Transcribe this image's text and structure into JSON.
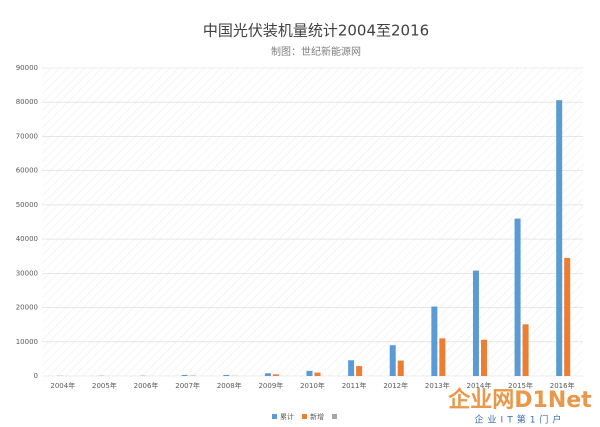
{
  "chart_data": {
    "type": "bar",
    "title": "中国光伏装机量统计2004至2016",
    "subtitle": "制图：世纪新能源网",
    "categories": [
      "2004年",
      "2005年",
      "2006年",
      "2007年",
      "2008年",
      "2009年",
      "2010年",
      "2011年",
      "2012年",
      "2013年",
      "2014年",
      "2015年",
      "2016年"
    ],
    "series": [
      {
        "name": "累计",
        "color": "#5b9bd5",
        "values": [
          65,
          70,
          80,
          300,
          300,
          800,
          1500,
          4600,
          9000,
          20300,
          30800,
          46000,
          80600
        ]
      },
      {
        "name": "新增",
        "color": "#ed7d31",
        "values": [
          10,
          5,
          10,
          100,
          50,
          500,
          1000,
          2900,
          4500,
          11000,
          10600,
          15100,
          34500
        ]
      }
    ],
    "ylim": [
      0,
      90000
    ],
    "yticks": [
      0,
      10000,
      20000,
      30000,
      40000,
      50000,
      60000,
      70000,
      80000,
      90000
    ],
    "grid": true,
    "legend": "bottom",
    "watermark": [
      "企业网D1Net",
      "企业IT第1门户"
    ]
  }
}
